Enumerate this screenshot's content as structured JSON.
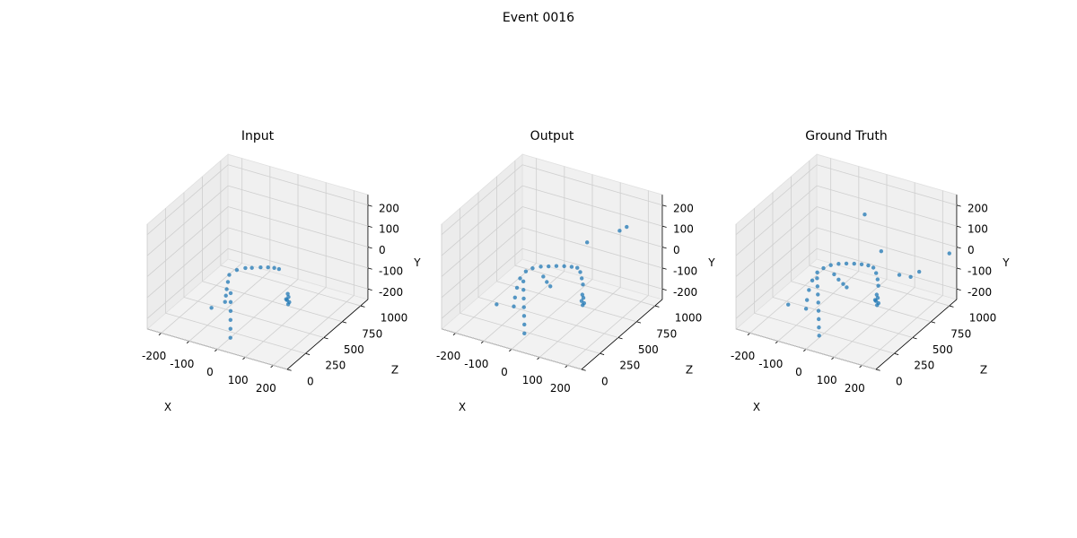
{
  "title": "Event 0016",
  "chart_data": [
    {
      "type": "scatter3d",
      "title": "Input",
      "xlabel": "X",
      "ylabel": "Y",
      "zlabel": "Z",
      "color": "#1f77b4",
      "xlim": [
        -250,
        250
      ],
      "ylim": [
        -250,
        250
      ],
      "zlim": [
        0,
        1100
      ],
      "xticks": [
        -200,
        -100,
        0,
        100,
        200
      ],
      "yticks": [
        -200,
        -100,
        0,
        100,
        200
      ],
      "zticks": [
        0,
        250,
        500,
        750,
        1000
      ],
      "x": [
        -40,
        -32,
        -24,
        -16,
        -8,
        0,
        -41,
        -45,
        -50,
        -53,
        -55,
        -40,
        -20,
        -3,
        20,
        40,
        57,
        70,
        102,
        104,
        100,
        106,
        103,
        98,
        -111
      ],
      "y": [
        -100,
        -130,
        -160,
        -190,
        -220,
        -250,
        -120,
        -100,
        -80,
        -55,
        -30,
        -15,
        -10,
        -10,
        -8,
        -8,
        -10,
        -15,
        -120,
        -135,
        -150,
        -160,
        -170,
        -145,
        -200
      ],
      "z": [
        336,
        305,
        274,
        242,
        211,
        180,
        263,
        290,
        320,
        348,
        374,
        420,
        460,
        484,
        515,
        540,
        560,
        575,
        572,
        575,
        570,
        578,
        574,
        565,
        345
      ]
    },
    {
      "type": "scatter3d",
      "title": "Output",
      "xlabel": "X",
      "ylabel": "Y",
      "zlabel": "Z",
      "color": "#1f77b4",
      "xlim": [
        -250,
        250
      ],
      "ylim": [
        -250,
        250
      ],
      "zlim": [
        0,
        1100
      ],
      "xticks": [
        -200,
        -100,
        0,
        100,
        200
      ],
      "yticks": [
        -200,
        -100,
        0,
        100,
        200
      ],
      "zticks": [
        0,
        250,
        500,
        750,
        1000
      ],
      "x": [
        -55,
        -48,
        -40,
        -32,
        -24,
        -16,
        -8,
        -55,
        -60,
        -62,
        -60,
        -50,
        -35,
        -15,
        5,
        25,
        45,
        65,
        80,
        88,
        92,
        95,
        -10,
        0,
        10,
        102,
        105,
        100,
        107,
        103,
        -140,
        150,
        170,
        60
      ],
      "y": [
        -60,
        -90,
        -120,
        -150,
        -180,
        -210,
        -240,
        -140,
        -110,
        -75,
        -40,
        -15,
        -5,
        0,
        0,
        0,
        -2,
        -5,
        -10,
        -30,
        -60,
        -90,
        -50,
        -75,
        -95,
        -125,
        -140,
        -155,
        -165,
        -175,
        -190,
        100,
        120,
        40
      ],
      "z": [
        370,
        345,
        318,
        290,
        262,
        235,
        205,
        240,
        275,
        310,
        345,
        385,
        420,
        455,
        485,
        515,
        545,
        570,
        590,
        600,
        605,
        610,
        470,
        480,
        490,
        575,
        578,
        572,
        580,
        576,
        330,
        900,
        920,
        800
      ]
    },
    {
      "type": "scatter3d",
      "title": "Ground Truth",
      "xlabel": "X",
      "ylabel": "Y",
      "zlabel": "Z",
      "color": "#1f77b4",
      "xlim": [
        -250,
        250
      ],
      "ylim": [
        -250,
        250
      ],
      "zlim": [
        0,
        1100
      ],
      "xticks": [
        -200,
        -100,
        0,
        100,
        200
      ],
      "yticks": [
        -200,
        -100,
        0,
        100,
        200
      ],
      "zticks": [
        0,
        250,
        500,
        750,
        1000
      ],
      "x": [
        -60,
        -52,
        -44,
        -36,
        -28,
        -20,
        -12,
        -4,
        -60,
        -65,
        -68,
        -66,
        -58,
        -45,
        -28,
        -8,
        12,
        32,
        52,
        70,
        84,
        92,
        96,
        98,
        -20,
        -8,
        5,
        15,
        102,
        105,
        100,
        107,
        103,
        98,
        -150,
        0,
        150,
        180,
        200,
        250,
        80
      ],
      "y": [
        -50,
        -78,
        -106,
        -134,
        -162,
        -190,
        -218,
        -246,
        -150,
        -120,
        -85,
        -50,
        -20,
        -5,
        5,
        10,
        10,
        8,
        5,
        0,
        -10,
        -35,
        -65,
        -95,
        -40,
        -65,
        -85,
        -100,
        -125,
        -140,
        -155,
        -165,
        -175,
        -150,
        -195,
        150,
        -50,
        -60,
        -40,
        0,
        30
      ],
      "z": [
        380,
        355,
        330,
        305,
        278,
        250,
        222,
        195,
        230,
        262,
        300,
        338,
        375,
        410,
        445,
        475,
        505,
        535,
        560,
        582,
        598,
        605,
        610,
        612,
        460,
        475,
        488,
        498,
        575,
        578,
        572,
        580,
        576,
        568,
        330,
        800,
        700,
        740,
        780,
        1000,
        720
      ]
    }
  ]
}
